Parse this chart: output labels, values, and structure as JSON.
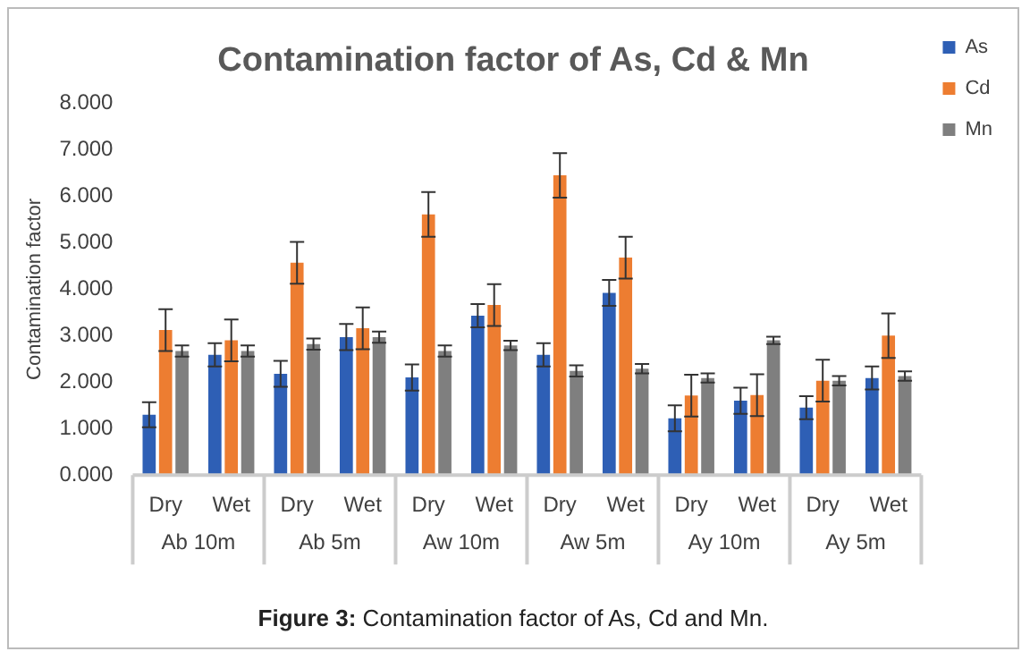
{
  "chart_data": {
    "type": "bar",
    "title": "Contamination factor of As, Cd & Mn",
    "ylabel": "Contamination factor",
    "categories": [
      "Dry",
      "Wet",
      "Dry",
      "Wet",
      "Dry",
      "Wet",
      "Dry",
      "Wet",
      "Dry",
      "Wet",
      "Dry",
      "Wet"
    ],
    "series": [
      {
        "name": "As",
        "color": "#2e5fb5",
        "values": [
          1.3,
          2.59,
          2.18,
          2.97,
          2.1,
          3.43,
          2.59,
          3.92,
          1.22,
          1.6,
          1.45,
          2.09
        ],
        "errors": [
          0.27,
          0.25,
          0.28,
          0.28,
          0.28,
          0.25,
          0.25,
          0.28,
          0.28,
          0.28,
          0.25,
          0.25
        ]
      },
      {
        "name": "Cd",
        "color": "#ed7d31",
        "values": [
          3.12,
          2.9,
          4.57,
          3.16,
          5.61,
          3.66,
          6.45,
          4.68,
          1.71,
          1.72,
          2.03,
          3.0
        ],
        "errors": [
          0.45,
          0.45,
          0.45,
          0.45,
          0.48,
          0.45,
          0.48,
          0.45,
          0.45,
          0.45,
          0.45,
          0.48
        ]
      },
      {
        "name": "Mn",
        "color": "#7f7f7f",
        "values": [
          2.67,
          2.67,
          2.82,
          2.97,
          2.67,
          2.79,
          2.24,
          2.29,
          2.09,
          2.9,
          2.03,
          2.13
        ],
        "errors": [
          0.12,
          0.12,
          0.12,
          0.12,
          0.12,
          0.1,
          0.12,
          0.1,
          0.1,
          0.08,
          0.1,
          0.1
        ]
      }
    ],
    "ylim": [
      0,
      8
    ],
    "yticks": [
      {
        "value": 0,
        "label": "0.000"
      },
      {
        "value": 1,
        "label": "1.000"
      },
      {
        "value": 2,
        "label": "2.000"
      },
      {
        "value": 3,
        "label": "3.000"
      },
      {
        "value": 4,
        "label": "4.000"
      },
      {
        "value": 5,
        "label": "5.000"
      },
      {
        "value": 6,
        "label": "6.000"
      },
      {
        "value": 7,
        "label": "7.000"
      },
      {
        "value": 8,
        "label": "8.000"
      }
    ],
    "annotations": [
      "Ab 10m",
      "Ab 5m",
      "Aw 10m",
      "Aw 5m",
      "Ay 10m",
      "Ay 5m",
      "Figure 3: Contamination factor of As, Cd and Mn."
    ],
    "grid": false,
    "legend": "top right"
  }
}
